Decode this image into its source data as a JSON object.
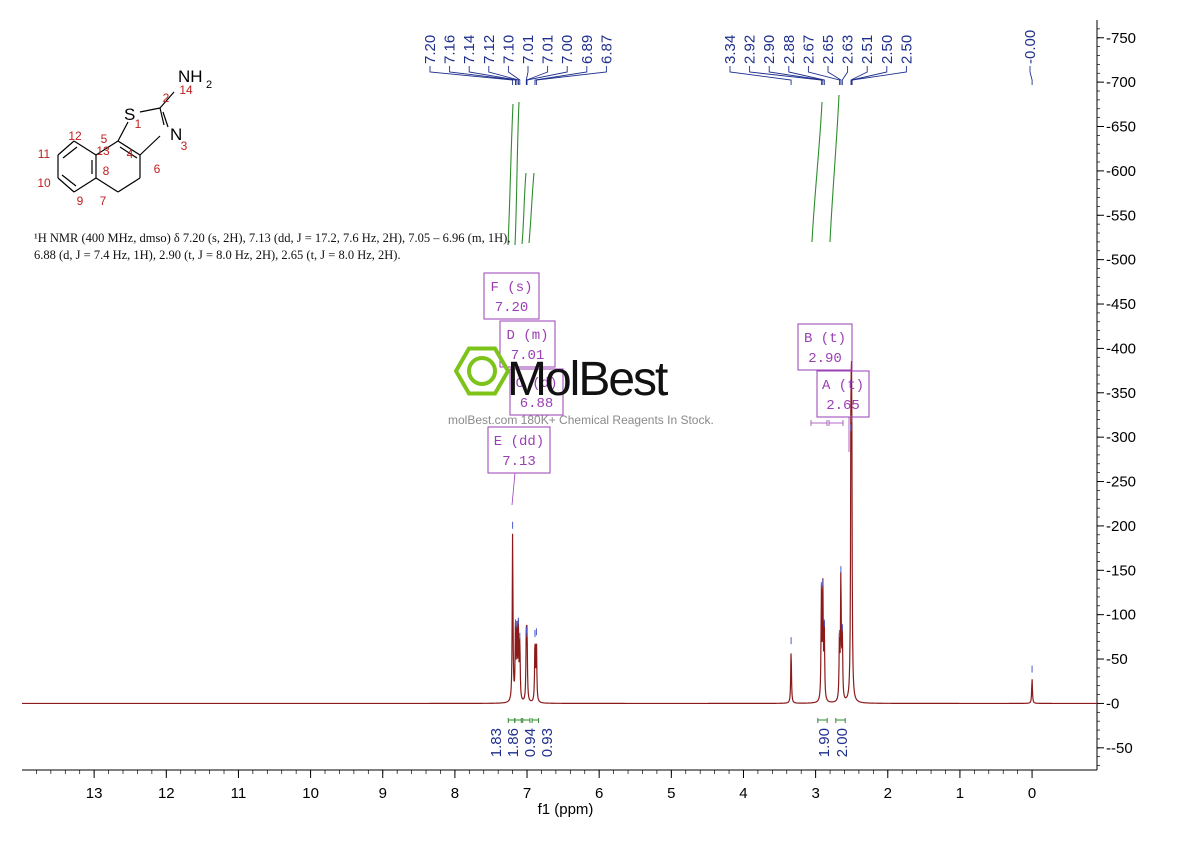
{
  "chart_data": {
    "type": "line",
    "x_axis": {
      "label": "f1 (ppm)",
      "range": [
        -0.9,
        14.0
      ],
      "reversed": true,
      "ticks": [
        13,
        12,
        11,
        10,
        9,
        8,
        7,
        6,
        5,
        4,
        3,
        2,
        1,
        0
      ]
    },
    "y_axis": {
      "position": "right",
      "range": [
        -75,
        770
      ],
      "ticks": [
        750,
        700,
        650,
        600,
        550,
        500,
        450,
        400,
        350,
        300,
        250,
        200,
        150,
        100,
        50,
        0,
        -50
      ]
    },
    "spectrum_color": "#8b1a1a",
    "peaks": [
      {
        "x": 7.2,
        "y": 190
      },
      {
        "x": 7.16,
        "y": 80
      },
      {
        "x": 7.14,
        "y": 78
      },
      {
        "x": 7.12,
        "y": 82
      },
      {
        "x": 7.1,
        "y": 65
      },
      {
        "x": 7.01,
        "y": 72
      },
      {
        "x": 7.0,
        "y": 68
      },
      {
        "x": 6.89,
        "y": 68
      },
      {
        "x": 6.87,
        "y": 70
      },
      {
        "x": 3.34,
        "y": 60
      },
      {
        "x": 2.92,
        "y": 122
      },
      {
        "x": 2.9,
        "y": 125
      },
      {
        "x": 2.88,
        "y": 80
      },
      {
        "x": 2.67,
        "y": 68
      },
      {
        "x": 2.65,
        "y": 140
      },
      {
        "x": 2.63,
        "y": 75
      },
      {
        "x": 2.51,
        "y": 300
      },
      {
        "x": 2.5,
        "y": 310
      },
      {
        "x": 0.0,
        "y": 28
      }
    ],
    "peak_labels": [
      {
        "text": "7.20",
        "x": 7.2
      },
      {
        "text": "7.16",
        "x": 7.16
      },
      {
        "text": "7.14",
        "x": 7.14
      },
      {
        "text": "7.12",
        "x": 7.12
      },
      {
        "text": "7.10",
        "x": 7.1
      },
      {
        "text": "7.01",
        "x": 7.01
      },
      {
        "text": "7.01",
        "x": 7.005
      },
      {
        "text": "7.00",
        "x": 7.0
      },
      {
        "text": "6.89",
        "x": 6.89
      },
      {
        "text": "6.87",
        "x": 6.87
      },
      {
        "text": "3.34",
        "x": 3.34
      },
      {
        "text": "2.92",
        "x": 2.92
      },
      {
        "text": "2.90",
        "x": 2.9
      },
      {
        "text": "2.88",
        "x": 2.88
      },
      {
        "text": "2.67",
        "x": 2.67
      },
      {
        "text": "2.65",
        "x": 2.65
      },
      {
        "text": "2.63",
        "x": 2.63
      },
      {
        "text": "2.51",
        "x": 2.51
      },
      {
        "text": "2.50",
        "x": 2.5
      },
      {
        "text": "2.50",
        "x": 2.495
      },
      {
        "text": "-0.00",
        "x": 0.0
      }
    ],
    "integrals": [
      {
        "value": "1.83",
        "from": 7.26,
        "to": 7.17
      },
      {
        "value": "1.86",
        "from": 7.17,
        "to": 7.08
      },
      {
        "value": "0.94",
        "from": 7.06,
        "to": 6.96
      },
      {
        "value": "0.93",
        "from": 6.93,
        "to": 6.84
      },
      {
        "value": "1.90",
        "from": 2.97,
        "to": 2.84
      },
      {
        "value": "2.00",
        "from": 2.72,
        "to": 2.59
      }
    ],
    "multiplets": [
      {
        "id": "F",
        "label": "F (s)",
        "value": "7.20"
      },
      {
        "id": "D",
        "label": "D (m)",
        "value": "7.01"
      },
      {
        "id": "C",
        "label": "C (d)",
        "value": "6.88"
      },
      {
        "id": "E",
        "label": "E (dd)",
        "value": "7.13"
      },
      {
        "id": "B",
        "label": "B (t)",
        "value": "2.90"
      },
      {
        "id": "A",
        "label": "A (t)",
        "value": "2.65"
      }
    ]
  },
  "nmr_description": {
    "line1": "¹H NMR (400 MHz, dmso) δ 7.20 (s, 2H), 7.13 (dd, J = 17.2, 7.6 Hz, 2H), 7.05 – 6.96 (m, 1H),",
    "line2": "6.88 (d, J = 7.4 Hz, 1H), 2.90 (t, J = 8.0 Hz, 2H), 2.65 (t, J = 8.0 Hz, 2H)."
  },
  "structure": {
    "atoms": {
      "nh2": "NH",
      "nh2_sub": "2",
      "s": "S",
      "n": "N"
    },
    "numbers": [
      "1",
      "2",
      "3",
      "4",
      "5",
      "6",
      "7",
      "8",
      "9",
      "10",
      "11",
      "12",
      "13",
      "14"
    ]
  },
  "watermark": {
    "logo_text": "MolBest",
    "tagline": "molBest.com 180K+ Chemical Reagents In Stock."
  },
  "colors": {
    "spectrum": "#8b1a1a",
    "peak_label": "#1f2f8c",
    "integral": "#2e8b2e",
    "multiplet_box": "#9b3fb4",
    "structure_number": "#c02020",
    "watermark_green": "#7dc31a"
  }
}
